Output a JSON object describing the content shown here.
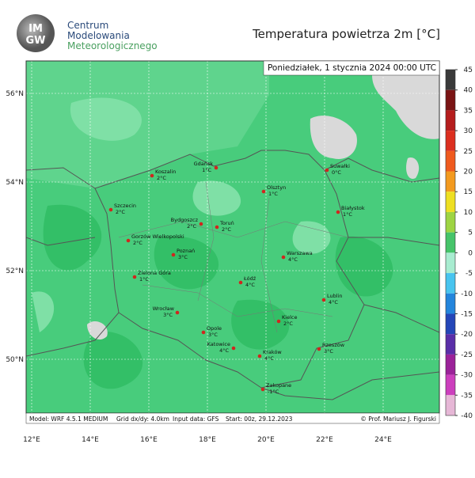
{
  "header": {
    "logo": [
      "IM",
      "GW"
    ],
    "institute": [
      "Centrum",
      "Modelowania",
      "Meteorologicznego"
    ],
    "title": "Temperatura powietrza 2m [°C]"
  },
  "map": {
    "date": "Poniedziałek, 1 stycznia 2024 00:00 UTC",
    "lat_labels": [
      "56°N",
      "54°N",
      "52°N",
      "50°N"
    ],
    "lon_labels": [
      "12°E",
      "14°E",
      "16°E",
      "18°E",
      "20°E",
      "22°E",
      "24°E"
    ],
    "cities": [
      {
        "name": "Koszalin",
        "temp": "2°C"
      },
      {
        "name": "Gdańsk",
        "temp": "1°C"
      },
      {
        "name": "Suwałki",
        "temp": "0°C"
      },
      {
        "name": "Szczecin",
        "temp": "2°C"
      },
      {
        "name": "Olsztyn",
        "temp": "1°C"
      },
      {
        "name": "Bydgoszcz",
        "temp": "2°C"
      },
      {
        "name": "Toruń",
        "temp": "2°C"
      },
      {
        "name": "Białystok",
        "temp": "1°C"
      },
      {
        "name": "Gorzów Wielkopolski",
        "temp": "2°C"
      },
      {
        "name": "Poznań",
        "temp": "3°C"
      },
      {
        "name": "Warszawa",
        "temp": "4°C"
      },
      {
        "name": "Zielona Góra",
        "temp": "1°C"
      },
      {
        "name": "Łódź",
        "temp": "4°C"
      },
      {
        "name": "Lublin",
        "temp": "4°C"
      },
      {
        "name": "Wrocław",
        "temp": "3°C"
      },
      {
        "name": "Opole",
        "temp": "3°C"
      },
      {
        "name": "Kielce",
        "temp": "2°C"
      },
      {
        "name": "Katowice",
        "temp": "4°C"
      },
      {
        "name": "Kraków",
        "temp": "4°C"
      },
      {
        "name": "Rzeszów",
        "temp": "3°C"
      },
      {
        "name": "Zakopane",
        "temp": "-1°C"
      }
    ],
    "footer": [
      "Model: WRF 4.5.1 MEDIUM",
      "Grid dx/dy: 4.0km",
      "Input data: GFS",
      "Start: 00z, 29.12.2023",
      "© Prof. Mariusz J. Figurski"
    ]
  },
  "colorbar": {
    "ticks": [
      45,
      40,
      35,
      30,
      25,
      20,
      15,
      10,
      5,
      0,
      -5,
      -10,
      -15,
      -20,
      -25,
      -30,
      -35,
      -40
    ]
  }
}
